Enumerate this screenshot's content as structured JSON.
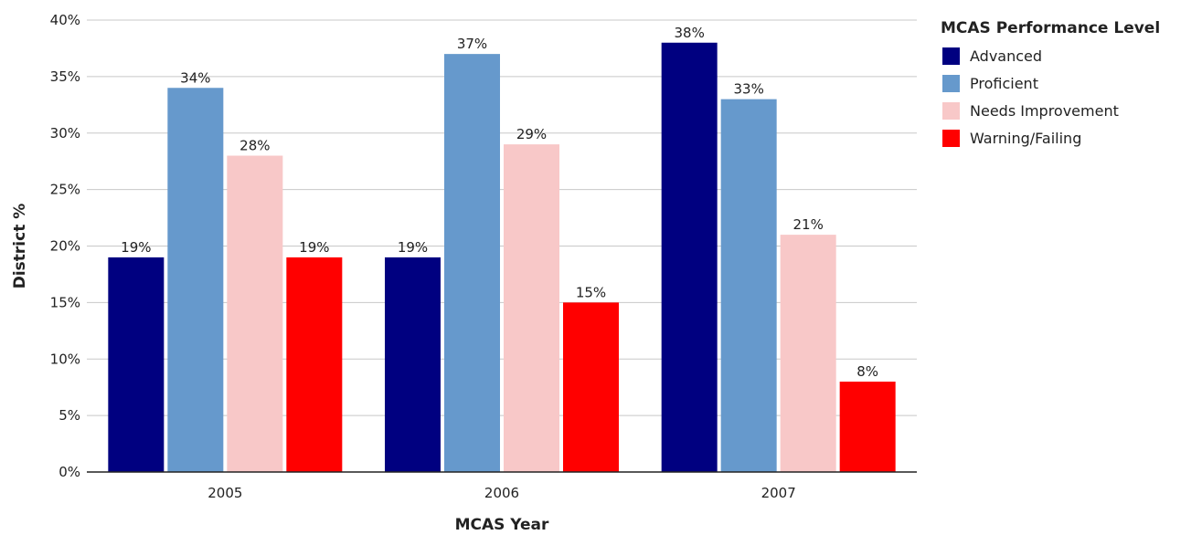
{
  "chart_data": {
    "type": "bar",
    "title": "",
    "xlabel": "MCAS Year",
    "ylabel": "District %",
    "categories": [
      "2005",
      "2006",
      "2007"
    ],
    "series": [
      {
        "name": "Advanced",
        "color": "#000080",
        "values": [
          19,
          19,
          38
        ],
        "labels": [
          "19%",
          "19%",
          "38%"
        ]
      },
      {
        "name": "Proficient",
        "color": "#6699cc",
        "values": [
          34,
          37,
          33
        ],
        "labels": [
          "34%",
          "37%",
          "33%"
        ]
      },
      {
        "name": "Needs Improvement",
        "color": "#f8c8c8",
        "values": [
          28,
          29,
          21
        ],
        "labels": [
          "28%",
          "29%",
          "21%"
        ]
      },
      {
        "name": "Warning/Failing",
        "color": "#ff0000",
        "values": [
          19,
          15,
          8
        ],
        "labels": [
          "19%",
          "15%",
          "8%"
        ]
      }
    ],
    "ylim": [
      0,
      40
    ],
    "yticks": [
      "0%",
      "5%",
      "10%",
      "15%",
      "20%",
      "25%",
      "30%",
      "35%",
      "40%"
    ],
    "grid": true,
    "legend": {
      "title": "MCAS Performance Level",
      "position": "top-right"
    }
  }
}
